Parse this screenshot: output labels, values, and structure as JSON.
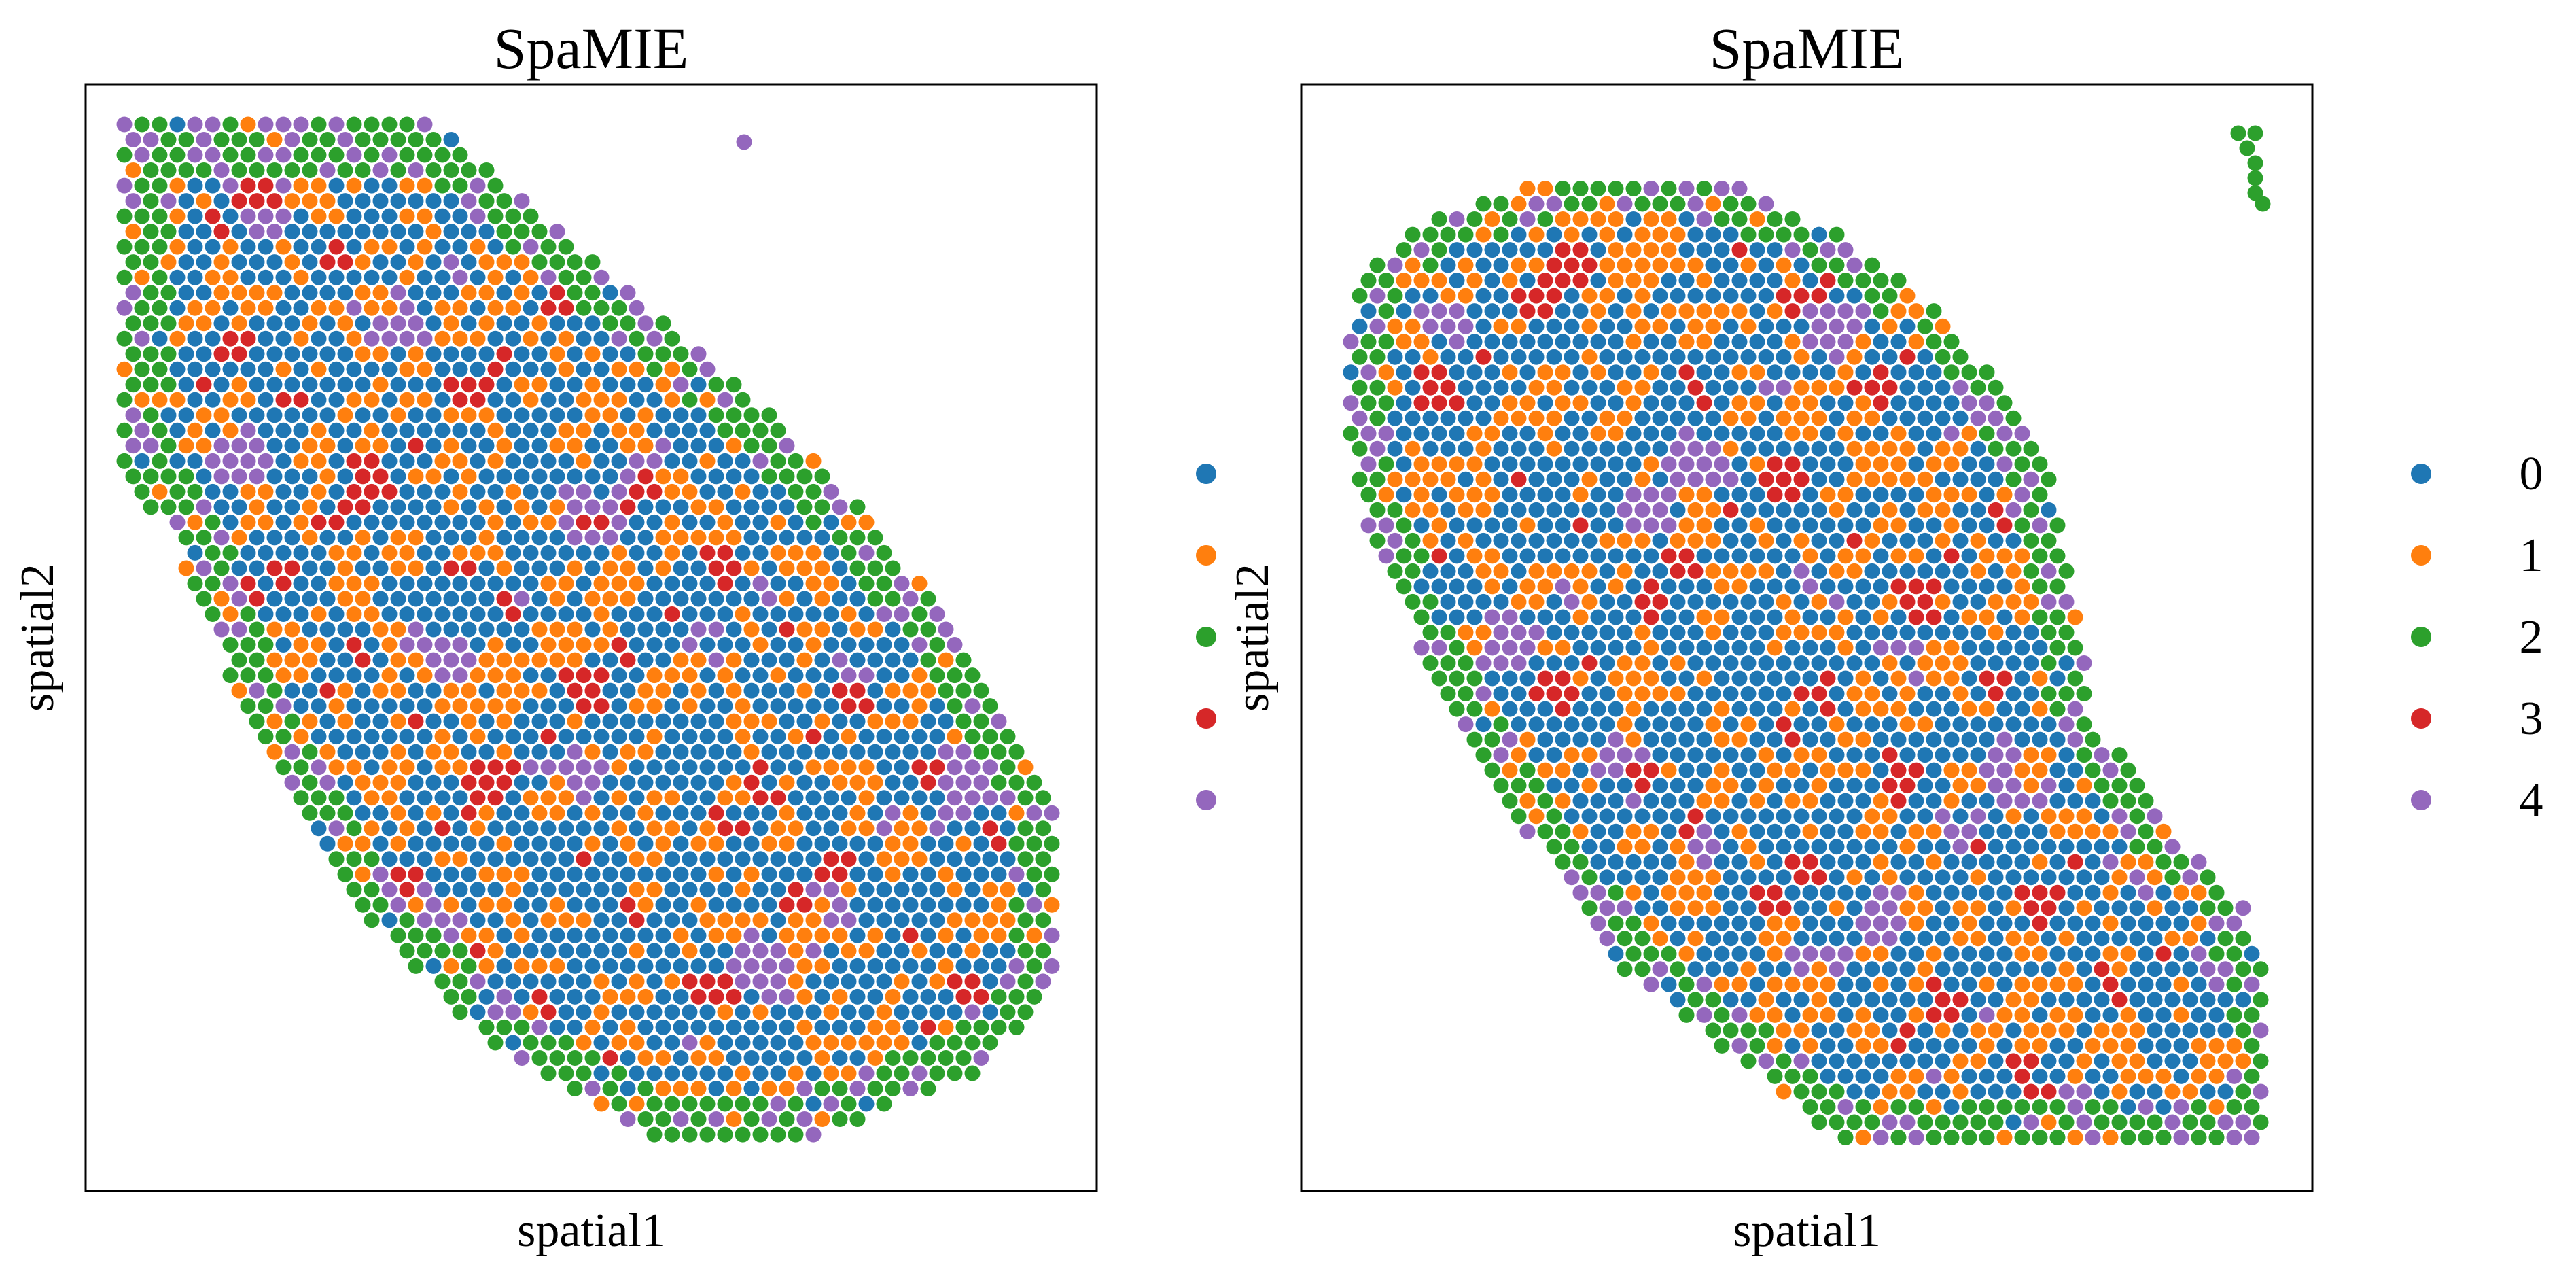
{
  "colors": {
    "0": "#1f77b4",
    "1": "#ff7f0e",
    "2": "#2ca02c",
    "3": "#d62728",
    "4": "#9467bd"
  },
  "chart_data": [
    {
      "type": "scatter",
      "title": "SpaMIE",
      "xlabel": "spatial1",
      "ylabel": "spatial2",
      "grid": false,
      "legend": {
        "placement": "right",
        "categories": [
          "0",
          "1",
          "2",
          "3",
          "4"
        ],
        "show_labels": false
      },
      "series_by_category": [
        "0",
        "1",
        "2",
        "3",
        "4"
      ]
    },
    {
      "type": "scatter",
      "title": "SpaMIE",
      "xlabel": "spatial1",
      "ylabel": "spatial2",
      "grid": false,
      "legend": {
        "placement": "right",
        "categories": [
          "0",
          "1",
          "2",
          "3",
          "4"
        ],
        "show_labels": true
      },
      "series_by_category": [
        "0",
        "1",
        "2",
        "3",
        "4"
      ]
    }
  ]
}
